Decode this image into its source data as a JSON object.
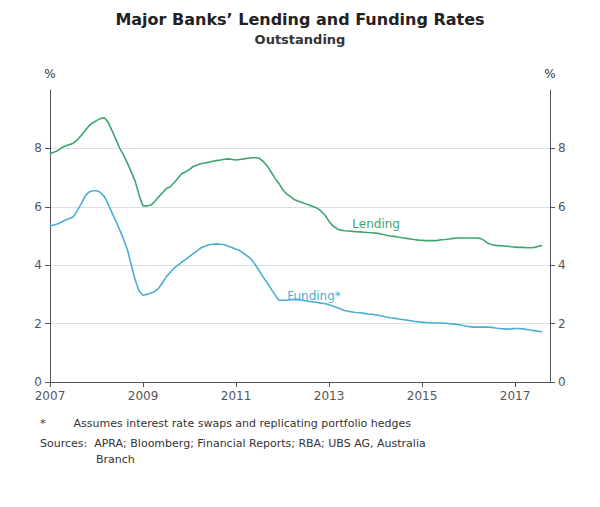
{
  "chart_data": {
    "type": "line",
    "title": "Major Banks’ Lending and Funding Rates",
    "subtitle": "Outstanding",
    "ylabel": "%",
    "y2label": "%",
    "xlim": [
      2007.0,
      2017.75
    ],
    "xticks": [
      2007,
      2009,
      2011,
      2013,
      2015,
      2017
    ],
    "ylim": [
      0,
      10
    ],
    "yticks": [
      0,
      2,
      4,
      6,
      8
    ],
    "y2lim": [
      0,
      10
    ],
    "y2ticks": [
      0,
      2,
      4,
      6,
      8
    ],
    "grid": true,
    "x": [
      2007.0,
      2007.08,
      2007.17,
      2007.25,
      2007.33,
      2007.42,
      2007.5,
      2007.58,
      2007.67,
      2007.75,
      2007.83,
      2007.92,
      2008.0,
      2008.08,
      2008.17,
      2008.25,
      2008.33,
      2008.42,
      2008.5,
      2008.58,
      2008.67,
      2008.75,
      2008.83,
      2008.92,
      2009.0,
      2009.08,
      2009.17,
      2009.25,
      2009.33,
      2009.42,
      2009.5,
      2009.58,
      2009.67,
      2009.75,
      2009.83,
      2009.92,
      2010.0,
      2010.08,
      2010.17,
      2010.25,
      2010.33,
      2010.42,
      2010.5,
      2010.58,
      2010.67,
      2010.75,
      2010.83,
      2010.92,
      2011.0,
      2011.08,
      2011.17,
      2011.25,
      2011.33,
      2011.42,
      2011.5,
      2011.58,
      2011.67,
      2011.75,
      2011.83,
      2011.92,
      2012.0,
      2012.08,
      2012.17,
      2012.25,
      2012.33,
      2012.42,
      2012.5,
      2012.58,
      2012.67,
      2012.75,
      2012.83,
      2012.92,
      2013.0,
      2013.08,
      2013.17,
      2013.25,
      2013.33,
      2013.42,
      2013.5,
      2013.58,
      2013.67,
      2013.75,
      2013.83,
      2013.92,
      2014.0,
      2014.08,
      2014.17,
      2014.25,
      2014.33,
      2014.42,
      2014.5,
      2014.58,
      2014.67,
      2014.75,
      2014.83,
      2014.92,
      2015.0,
      2015.08,
      2015.17,
      2015.25,
      2015.33,
      2015.42,
      2015.5,
      2015.58,
      2015.67,
      2015.75,
      2015.83,
      2015.92,
      2016.0,
      2016.08,
      2016.17,
      2016.25,
      2016.33,
      2016.42,
      2016.5,
      2016.58,
      2016.67,
      2016.75,
      2016.83,
      2016.92,
      2017.0,
      2017.08,
      2017.17,
      2017.25,
      2017.33,
      2017.42,
      2017.5,
      2017.58
    ],
    "series": [
      {
        "name": "Lending",
        "color": "#3ca66e",
        "values": [
          7.82,
          7.87,
          7.93,
          8.02,
          8.08,
          8.13,
          8.18,
          8.28,
          8.44,
          8.6,
          8.76,
          8.88,
          8.95,
          9.02,
          9.05,
          8.9,
          8.62,
          8.3,
          8.0,
          7.78,
          7.48,
          7.18,
          6.88,
          6.38,
          6.03,
          6.03,
          6.06,
          6.18,
          6.33,
          6.48,
          6.63,
          6.68,
          6.83,
          6.98,
          7.13,
          7.2,
          7.28,
          7.38,
          7.43,
          7.48,
          7.5,
          7.53,
          7.56,
          7.58,
          7.6,
          7.63,
          7.64,
          7.62,
          7.6,
          7.62,
          7.64,
          7.66,
          7.68,
          7.68,
          7.66,
          7.56,
          7.4,
          7.2,
          7.0,
          6.8,
          6.6,
          6.45,
          6.35,
          6.25,
          6.2,
          6.15,
          6.1,
          6.05,
          6.0,
          5.95,
          5.85,
          5.7,
          5.5,
          5.35,
          5.25,
          5.2,
          5.18,
          5.17,
          5.16,
          5.15,
          5.14,
          5.13,
          5.12,
          5.11,
          5.1,
          5.08,
          5.05,
          5.02,
          5.0,
          4.98,
          4.96,
          4.94,
          4.92,
          4.9,
          4.88,
          4.86,
          4.85,
          4.84,
          4.84,
          4.84,
          4.85,
          4.87,
          4.88,
          4.9,
          4.92,
          4.93,
          4.93,
          4.93,
          4.93,
          4.93,
          4.93,
          4.92,
          4.85,
          4.75,
          4.7,
          4.68,
          4.67,
          4.66,
          4.65,
          4.63,
          4.62,
          4.61,
          4.61,
          4.6,
          4.6,
          4.61,
          4.65,
          4.67
        ]
      },
      {
        "name": "Funding*",
        "color": "#4aafd4",
        "values": [
          5.35,
          5.38,
          5.42,
          5.48,
          5.55,
          5.6,
          5.65,
          5.85,
          6.1,
          6.35,
          6.5,
          6.55,
          6.55,
          6.5,
          6.35,
          6.1,
          5.8,
          5.5,
          5.2,
          4.9,
          4.5,
          4.0,
          3.5,
          3.1,
          2.97,
          3.0,
          3.05,
          3.1,
          3.2,
          3.4,
          3.6,
          3.75,
          3.9,
          4.0,
          4.1,
          4.2,
          4.3,
          4.4,
          4.5,
          4.6,
          4.65,
          4.7,
          4.72,
          4.73,
          4.72,
          4.7,
          4.65,
          4.6,
          4.55,
          4.5,
          4.4,
          4.3,
          4.2,
          4.0,
          3.8,
          3.6,
          3.4,
          3.2,
          3.0,
          2.8,
          2.8,
          2.8,
          2.82,
          2.83,
          2.82,
          2.8,
          2.78,
          2.76,
          2.74,
          2.72,
          2.7,
          2.68,
          2.65,
          2.6,
          2.55,
          2.5,
          2.45,
          2.42,
          2.4,
          2.38,
          2.37,
          2.35,
          2.33,
          2.32,
          2.3,
          2.28,
          2.25,
          2.22,
          2.2,
          2.18,
          2.16,
          2.14,
          2.12,
          2.1,
          2.08,
          2.06,
          2.05,
          2.04,
          2.03,
          2.02,
          2.02,
          2.02,
          2.01,
          2.0,
          1.99,
          1.97,
          1.95,
          1.92,
          1.9,
          1.88,
          1.88,
          1.88,
          1.88,
          1.88,
          1.87,
          1.85,
          1.83,
          1.82,
          1.81,
          1.82,
          1.83,
          1.83,
          1.82,
          1.8,
          1.78,
          1.76,
          1.74,
          1.72
        ]
      }
    ],
    "annotations": [
      {
        "text": "Lending",
        "x": 2013.5,
        "y": 5.2,
        "color": "#3ca66e"
      },
      {
        "text": "Funding*",
        "x": 2012.1,
        "y": 2.75,
        "color": "#4aafd4"
      }
    ],
    "footnotes": [
      "*        Assumes interest rate swaps and replicating portfolio hedges",
      "Sources:  APRA; Bloomberg; Financial Reports; RBA; UBS AG, Australia",
      "Branch"
    ]
  }
}
